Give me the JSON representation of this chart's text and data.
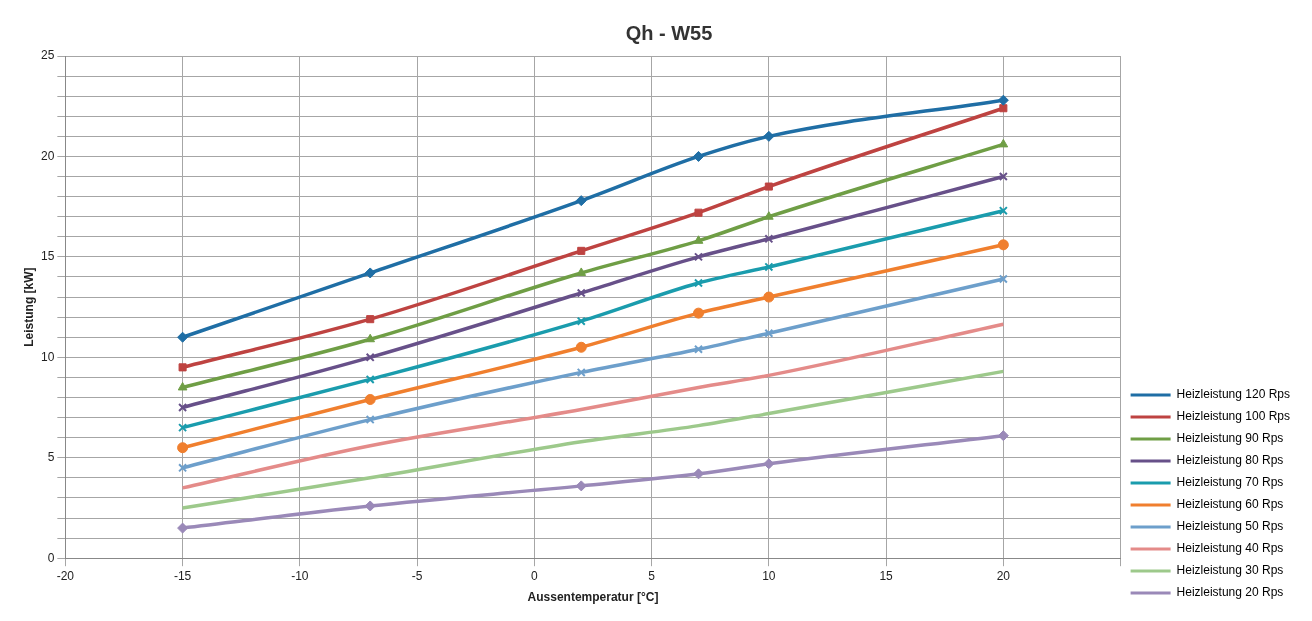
{
  "chart_data": {
    "type": "line",
    "title": "Qh - W55",
    "xlabel": "Aussentemperatur [°C]",
    "ylabel": "Leistung [kW]",
    "x": [
      -15,
      -7,
      2,
      7,
      10,
      20
    ],
    "xlim": [
      -20,
      25
    ],
    "xticks": [
      -20,
      -15,
      -10,
      -5,
      0,
      5,
      10,
      15,
      20,
      {
        "value": 25,
        "label": null
      }
    ],
    "ylim": [
      0,
      25
    ],
    "yticks": [
      0,
      {
        "value": 1,
        "label": null
      },
      {
        "value": 2,
        "label": null
      },
      {
        "value": 3,
        "label": null
      },
      {
        "value": 4,
        "label": null
      },
      5,
      {
        "value": 6,
        "label": null
      },
      {
        "value": 7,
        "label": null
      },
      {
        "value": 8,
        "label": null
      },
      {
        "value": 9,
        "label": null
      },
      10,
      {
        "value": 11,
        "label": null
      },
      {
        "value": 12,
        "label": null
      },
      {
        "value": 13,
        "label": null
      },
      {
        "value": 14,
        "label": null
      },
      15,
      {
        "value": 16,
        "label": null
      },
      {
        "value": 17,
        "label": null
      },
      {
        "value": 18,
        "label": null
      },
      {
        "value": 19,
        "label": null
      },
      20,
      {
        "value": 21,
        "label": null
      },
      {
        "value": 22,
        "label": null
      },
      {
        "value": 23,
        "label": null
      },
      {
        "value": 24,
        "label": null
      },
      25
    ],
    "grid": true,
    "legend": "right",
    "line_style": "solid",
    "series": [
      {
        "name": "Heizleistung 120 Rps",
        "color": "#1f6ea5",
        "marker": "diamond",
        "values": [
          11.0,
          14.2,
          17.8,
          20.0,
          21.0,
          22.8
        ]
      },
      {
        "name": "Heizleistung 100 Rps",
        "color": "#be4341",
        "marker": "square",
        "values": [
          9.5,
          11.9,
          15.3,
          17.2,
          18.5,
          22.4
        ]
      },
      {
        "name": "Heizleistung 90 Rps",
        "color": "#6f9e45",
        "marker": "triangle",
        "values": [
          8.5,
          10.9,
          14.2,
          15.8,
          17.0,
          20.6
        ]
      },
      {
        "name": "Heizleistung 80 Rps",
        "color": "#675089",
        "marker": "cross",
        "values": [
          7.5,
          10.0,
          13.2,
          15.0,
          15.9,
          19.0
        ]
      },
      {
        "name": "Heizleistung 70 Rps",
        "color": "#1a9cad",
        "marker": "cross",
        "values": [
          6.5,
          8.9,
          11.8,
          13.7,
          14.5,
          17.3
        ]
      },
      {
        "name": "Heizleistung 60 Rps",
        "color": "#f07f2e",
        "marker": "circle",
        "values": [
          5.5,
          7.9,
          10.5,
          12.2,
          13.0,
          15.6
        ]
      },
      {
        "name": "Heizleistung 50 Rps",
        "color": "#6d9fcb",
        "marker": "cross",
        "values": [
          4.5,
          6.9,
          9.25,
          10.4,
          11.2,
          13.9
        ]
      },
      {
        "name": "Heizleistung 40 Rps",
        "color": "#e48b89",
        "marker": "none",
        "values": [
          3.5,
          5.6,
          7.4,
          8.5,
          9.1,
          11.65
        ]
      },
      {
        "name": "Heizleistung 30 Rps",
        "color": "#9dc98b",
        "marker": "none",
        "values": [
          2.5,
          4.0,
          5.8,
          6.6,
          7.2,
          9.3
        ]
      },
      {
        "name": "Heizleistung 20 Rps",
        "color": "#9a89b8",
        "marker": "diamond",
        "values": [
          1.5,
          2.6,
          3.6,
          4.2,
          4.7,
          6.1
        ]
      }
    ]
  }
}
